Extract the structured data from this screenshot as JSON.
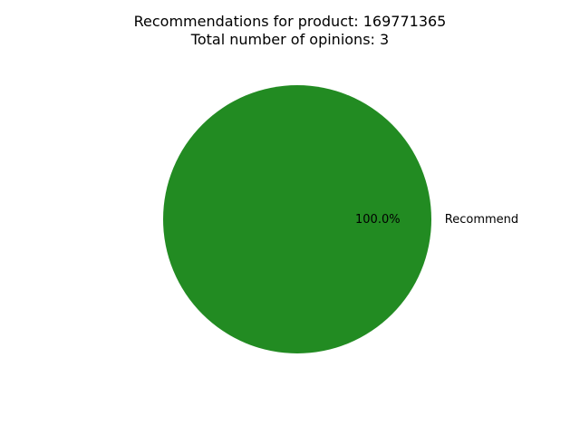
{
  "chart_data": {
    "type": "pie",
    "title": "Recommendations for product: 169771365",
    "subtitle": "Total number of opinions: 3",
    "slices": [
      {
        "label": "Recommend",
        "value": 3,
        "percent_label": "100.0%",
        "color": "#228b22"
      }
    ],
    "legend": "none"
  }
}
